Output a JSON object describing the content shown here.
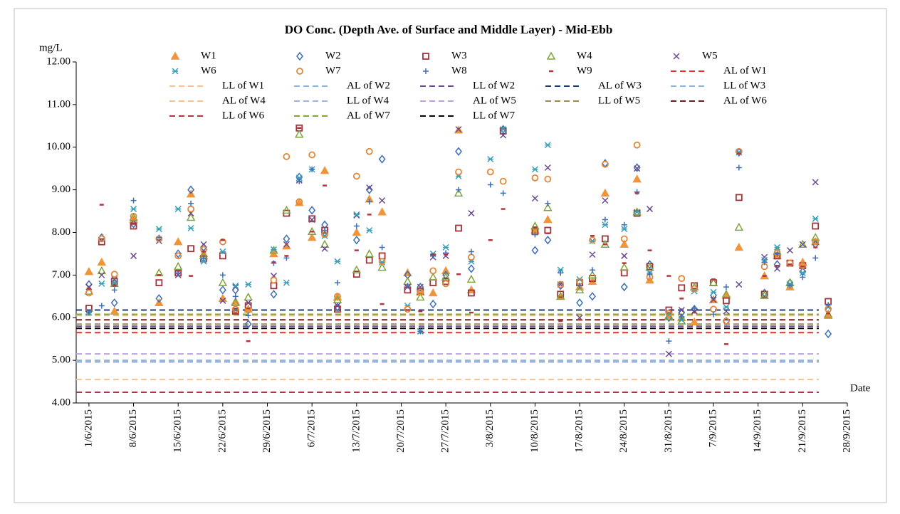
{
  "chart_data": {
    "type": "scatter",
    "title": "DO Conc. (Depth Ave. of Surface and Middle Layer) - Mid-Ebb",
    "y_label": "mg/L",
    "x_label": "Date",
    "x": [
      "2015-06-01",
      "2015-06-03",
      "2015-06-05",
      "2015-06-08",
      "2015-06-12",
      "2015-06-15",
      "2015-06-17",
      "2015-06-19",
      "2015-06-22",
      "2015-06-24",
      "2015-06-26",
      "2015-06-30",
      "2015-07-02",
      "2015-07-04",
      "2015-07-06",
      "2015-07-08",
      "2015-07-10",
      "2015-07-13",
      "2015-07-15",
      "2015-07-17",
      "2015-07-21",
      "2015-07-23",
      "2015-07-25",
      "2015-07-27",
      "2015-07-29",
      "2015-07-31",
      "2015-08-03",
      "2015-08-05",
      "2015-08-10",
      "2015-08-12",
      "2015-08-14",
      "2015-08-17",
      "2015-08-19",
      "2015-08-21",
      "2015-08-24",
      "2015-08-26",
      "2015-08-28",
      "2015-08-31",
      "2015-09-02",
      "2015-09-04",
      "2015-09-07",
      "2015-09-09",
      "2015-09-11",
      "2015-09-15",
      "2015-09-17",
      "2015-09-19",
      "2015-09-21",
      "2015-09-23",
      "2015-09-25"
    ],
    "xlim": [
      "2015-05-30",
      "2015-09-28"
    ],
    "xticks": [
      {
        "value": "2015-06-01",
        "label": "1/6/2015"
      },
      {
        "value": "2015-06-08",
        "label": "8/6/2015"
      },
      {
        "value": "2015-06-15",
        "label": "15/6/2015"
      },
      {
        "value": "2015-06-22",
        "label": "22/6/2015"
      },
      {
        "value": "2015-06-29",
        "label": "29/6/2015"
      },
      {
        "value": "2015-07-06",
        "label": "6/7/2015"
      },
      {
        "value": "2015-07-13",
        "label": "13/7/2015"
      },
      {
        "value": "2015-07-20",
        "label": "20/7/2015"
      },
      {
        "value": "2015-07-27",
        "label": "27/7/2015"
      },
      {
        "value": "2015-08-03",
        "label": "3/8/2015"
      },
      {
        "value": "2015-08-10",
        "label": "10/8/2015"
      },
      {
        "value": "2015-08-17",
        "label": "17/8/2015"
      },
      {
        "value": "2015-08-24",
        "label": "24/8/2015"
      },
      {
        "value": "2015-08-31",
        "label": "31/8/2015"
      },
      {
        "value": "2015-09-07",
        "label": "7/9/2015"
      },
      {
        "value": "2015-09-14",
        "label": "14/9/2015"
      },
      {
        "value": "2015-09-21",
        "label": "21/9/2015"
      },
      {
        "value": "2015-09-28",
        "label": "28/9/2015"
      }
    ],
    "ylim": [
      4,
      12
    ],
    "yticks": [
      {
        "value": 4,
        "label": "4.00"
      },
      {
        "value": 5,
        "label": "5.00"
      },
      {
        "value": 6,
        "label": "6.00"
      },
      {
        "value": 7,
        "label": "7.00"
      },
      {
        "value": 8,
        "label": "8.00"
      },
      {
        "value": 9,
        "label": "9.00"
      },
      {
        "value": 10,
        "label": "10.00"
      },
      {
        "value": 11,
        "label": "11.00"
      },
      {
        "value": 12,
        "label": "12.00"
      }
    ],
    "grid": false,
    "series": [
      {
        "name": "W1",
        "color": "#f0953a",
        "marker": "triangle-filled",
        "values": [
          7.08,
          7.3,
          6.15,
          8.3,
          6.35,
          7.78,
          8.9,
          7.5,
          6.45,
          6.38,
          6.2,
          7.5,
          7.68,
          8.7,
          7.88,
          9.45,
          6.48,
          8.0,
          8.78,
          8.48,
          7.05,
          6.6,
          6.58,
          7.1,
          10.4,
          6.65,
          null,
          null,
          8.05,
          8.3,
          6.5,
          6.72,
          6.85,
          8.92,
          7.72,
          9.25,
          6.88,
          6.05,
          6.0,
          5.9,
          6.42,
          6.52,
          7.65,
          6.98,
          7.45,
          6.72,
          7.3,
          7.78,
          6.05
        ]
      },
      {
        "name": "W2",
        "color": "#3f6fb5",
        "marker": "diamond",
        "values": [
          6.78,
          7.88,
          6.35,
          8.2,
          6.45,
          7.5,
          9.0,
          7.65,
          6.65,
          6.65,
          5.85,
          6.55,
          7.85,
          9.3,
          8.52,
          8.18,
          6.25,
          7.82,
          9.0,
          9.72,
          7.0,
          6.72,
          6.32,
          7.0,
          9.9,
          7.15,
          null,
          10.42,
          7.58,
          7.82,
          6.75,
          6.35,
          6.5,
          9.62,
          6.72,
          9.52,
          7.25,
          6.0,
          6.12,
          6.2,
          6.52,
          5.92,
          9.88,
          6.58,
          7.25,
          6.82,
          7.08,
          7.72,
          5.62
        ]
      },
      {
        "name": "W3",
        "color": "#a0343a",
        "marker": "square",
        "values": [
          6.22,
          7.78,
          6.85,
          8.15,
          6.82,
          7.05,
          7.62,
          7.38,
          7.45,
          6.15,
          6.28,
          6.75,
          8.45,
          10.45,
          8.32,
          8.05,
          6.2,
          7.02,
          7.35,
          7.45,
          6.65,
          6.62,
          6.82,
          6.85,
          8.1,
          6.58,
          null,
          10.38,
          8.02,
          8.05,
          6.55,
          6.82,
          6.92,
          7.85,
          7.05,
          8.45,
          7.2,
          6.18,
          6.7,
          6.75,
          6.82,
          6.4,
          8.82,
          6.55,
          7.45,
          7.28,
          7.22,
          8.15,
          6.38
        ]
      },
      {
        "name": "W4",
        "color": "#7fa53c",
        "marker": "triangle",
        "values": [
          6.62,
          7.1,
          6.8,
          8.35,
          7.05,
          7.2,
          8.35,
          7.45,
          6.82,
          6.35,
          6.48,
          7.58,
          8.52,
          10.3,
          8.02,
          7.72,
          6.42,
          7.12,
          7.5,
          7.18,
          6.85,
          6.48,
          6.95,
          6.95,
          8.92,
          6.9,
          null,
          null,
          8.15,
          8.58,
          6.5,
          6.65,
          7.0,
          7.72,
          7.18,
          8.48,
          7.18,
          6.02,
          5.92,
          6.72,
          6.82,
          6.55,
          8.12,
          6.52,
          7.55,
          6.82,
          7.72,
          7.88,
          6.08
        ]
      },
      {
        "name": "W5",
        "color": "#6b4a8f",
        "marker": "x",
        "values": [
          6.72,
          7.0,
          6.9,
          7.45,
          7.8,
          7.0,
          8.45,
          7.72,
          6.4,
          6.72,
          6.35,
          6.98,
          7.72,
          9.22,
          8.3,
          7.62,
          6.28,
          8.4,
          9.05,
          8.75,
          6.72,
          6.72,
          7.42,
          7.45,
          10.42,
          8.45,
          null,
          10.28,
          8.8,
          9.52,
          6.78,
          6.0,
          7.48,
          8.75,
          7.45,
          9.5,
          8.55,
          5.15,
          6.18,
          6.15,
          6.42,
          6.15,
          6.78,
          7.42,
          7.15,
          7.58,
          7.72,
          9.18,
          6.25
        ]
      },
      {
        "name": "W6",
        "color": "#3aa0b8",
        "marker": "asterisk",
        "values": [
          6.12,
          6.8,
          6.82,
          8.55,
          8.08,
          8.55,
          8.1,
          7.32,
          7.55,
          6.75,
          6.78,
          7.6,
          6.82,
          9.28,
          9.48,
          7.92,
          7.32,
          8.42,
          8.05,
          7.3,
          6.28,
          5.68,
          7.5,
          7.65,
          9.32,
          7.32,
          9.72,
          10.42,
          9.48,
          10.05,
          7.12,
          6.9,
          7.8,
          8.18,
          8.08,
          8.48,
          7.05,
          6.05,
          5.95,
          6.62,
          6.6,
          6.25,
          9.88,
          7.35,
          7.65,
          6.78,
          7.05,
          8.32,
          6.25
        ]
      },
      {
        "name": "W7",
        "color": "#e0873a",
        "marker": "circle",
        "values": [
          6.58,
          7.85,
          7.02,
          8.38,
          7.85,
          7.45,
          8.55,
          7.6,
          7.78,
          6.2,
          6.18,
          6.88,
          9.78,
          8.72,
          9.82,
          7.95,
          6.5,
          9.32,
          9.9,
          7.32,
          6.2,
          6.6,
          7.1,
          6.8,
          9.42,
          7.42,
          9.42,
          9.2,
          9.28,
          9.25,
          6.78,
          6.85,
          7.82,
          9.6,
          7.85,
          10.05,
          6.95,
          6.1,
          6.92,
          6.68,
          6.2,
          5.92,
          9.9,
          7.2,
          7.52,
          7.28,
          7.22,
          7.78,
          6.2
        ]
      },
      {
        "name": "W8",
        "color": "#3f6fb5",
        "marker": "plus",
        "values": [
          6.12,
          6.28,
          6.65,
          8.75,
          7.88,
          7.05,
          8.68,
          7.4,
          7.0,
          6.5,
          6.05,
          7.28,
          7.4,
          9.2,
          9.48,
          8.05,
          6.82,
          8.15,
          8.72,
          7.65,
          6.75,
          5.68,
          7.45,
          7.52,
          9.0,
          7.55,
          9.12,
          8.92,
          7.95,
          8.68,
          7.05,
          6.75,
          7.12,
          8.3,
          8.18,
          8.95,
          7.02,
          5.45,
          6.02,
          6.22,
          6.08,
          6.72,
          9.52,
          7.3,
          7.5,
          6.75,
          6.95,
          7.4,
          6.3
        ]
      },
      {
        "name": "W9",
        "color": "#b0373e",
        "marker": "dash",
        "values": [
          6.68,
          8.65,
          6.75,
          8.2,
          7.0,
          7.1,
          6.98,
          7.55,
          7.82,
          6.1,
          5.45,
          7.3,
          7.45,
          10.45,
          8.02,
          9.1,
          5.95,
          7.58,
          8.42,
          6.32,
          6.18,
          6.15,
          7.48,
          7.48,
          7.02,
          6.12,
          7.82,
          8.55,
          8.12,
          7.98,
          5.92,
          5.95,
          7.92,
          7.72,
          7.28,
          8.92,
          7.58,
          6.98,
          6.45,
          6.12,
          6.9,
          5.38,
          9.85,
          6.98,
          7.22,
          7.25,
          7.2,
          7.65,
          6.1
        ]
      }
    ],
    "lines": [
      {
        "name": "AL of W1",
        "color": "#e8302a",
        "value": 5.65
      },
      {
        "name": "LL of W1",
        "color": "#f6c28f",
        "value": 4.55
      },
      {
        "name": "AL of W2",
        "color": "#8fb3e0",
        "value": 5.0
      },
      {
        "name": "LL of W2",
        "color": "#6b4a8f",
        "value": 5.8
      },
      {
        "name": "AL of W3",
        "color": "#1f3d6e",
        "value": 6.18
      },
      {
        "name": "LL of W3",
        "color": "#8fb3e0",
        "value": 4.96
      },
      {
        "name": "AL of W4",
        "color": "#f6c28f",
        "value": 6.05
      },
      {
        "name": "LL of W4",
        "color": "#9fb5d8",
        "value": 4.98
      },
      {
        "name": "AL of W5",
        "color": "#b9a4d8",
        "value": 5.15
      },
      {
        "name": "LL of W5",
        "color": "#9b8a55",
        "value": 5.85
      },
      {
        "name": "AL of W6",
        "color": "#6b1f1f",
        "value": 5.95
      },
      {
        "name": "LL of W6",
        "color": "#b0373e",
        "value": 4.25
      },
      {
        "name": "AL of W7",
        "color": "#7fa53c",
        "value": 6.08
      },
      {
        "name": "LL of W7",
        "color": "#000000",
        "value": 5.75
      }
    ]
  }
}
